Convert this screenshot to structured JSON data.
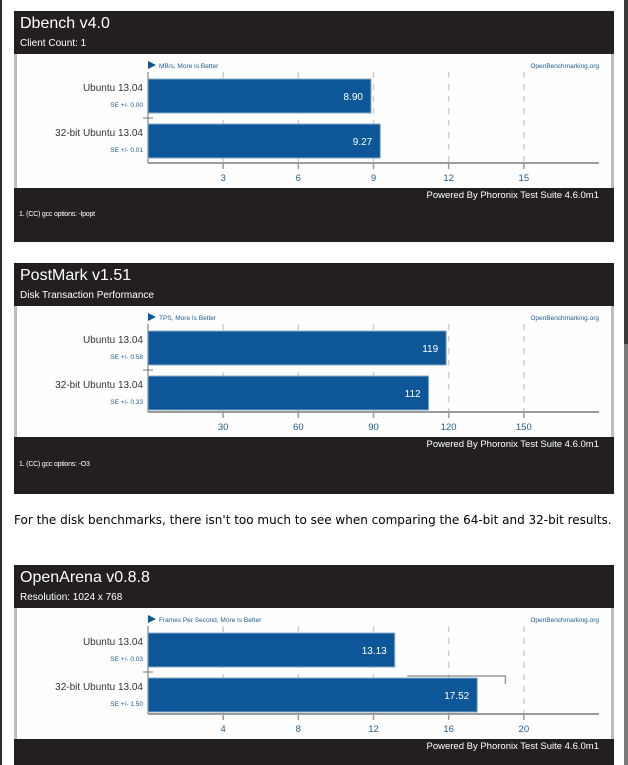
{
  "colors": {
    "bar": "#0d5697",
    "bar_border": "#8aa9c6",
    "header_bg": "#231f20",
    "axis": "#9b9b9b",
    "tick_label": "#1e5b91",
    "grid": "#cfcfcf"
  },
  "paragraph": "For the disk benchmarks, there isn't too much to see when comparing the 64-bit and 32-bit results.",
  "chart_data": [
    {
      "type": "bar",
      "orientation": "horizontal",
      "title": "Dbench v4.0",
      "subtitle": "Client Count: 1",
      "units_label": "MB/s, More Is Better",
      "watermark": "OpenBenchmarking.org",
      "categories": [
        "Ubuntu 13.04",
        "32-bit Ubuntu 13.04"
      ],
      "se_labels": [
        "SE +/- 0.00",
        "SE +/- 0.01"
      ],
      "values": [
        8.9,
        9.27
      ],
      "value_labels": [
        "8.90",
        "9.27"
      ],
      "error": [
        0.0,
        0.01
      ],
      "xticks": [
        3,
        6,
        9,
        12,
        15
      ],
      "xlim": [
        0,
        18
      ],
      "grid": true,
      "footnote": "1. (CC) gcc options: -lpopt",
      "powered_by": "Powered By Phoronix Test Suite 4.6.0m1"
    },
    {
      "type": "bar",
      "orientation": "horizontal",
      "title": "PostMark v1.51",
      "subtitle": "Disk Transaction Performance",
      "units_label": "TPS, More Is Better",
      "watermark": "OpenBenchmarking.org",
      "categories": [
        "Ubuntu 13.04",
        "32-bit Ubuntu 13.04"
      ],
      "se_labels": [
        "SE +/- 0.58",
        "SE +/- 0.33"
      ],
      "values": [
        119,
        112
      ],
      "value_labels": [
        "119",
        "112"
      ],
      "error": [
        0.58,
        0.33
      ],
      "xticks": [
        30,
        60,
        90,
        120,
        150
      ],
      "xlim": [
        0,
        180
      ],
      "grid": true,
      "footnote": "1. (CC) gcc options: -O3",
      "powered_by": "Powered By Phoronix Test Suite 4.6.0m1"
    },
    {
      "type": "bar",
      "orientation": "horizontal",
      "title": "OpenArena v0.8.8",
      "subtitle": "Resolution: 1024 x 768",
      "units_label": "Frames Per Second, More Is Better",
      "watermark": "OpenBenchmarking.org",
      "categories": [
        "Ubuntu 13.04",
        "32-bit Ubuntu 13.04"
      ],
      "se_labels": [
        "SE +/- 0.03",
        "SE +/- 1.50"
      ],
      "values": [
        13.13,
        17.52
      ],
      "value_labels": [
        "13.13",
        "17.52"
      ],
      "error": [
        0.03,
        1.5
      ],
      "xticks": [
        4,
        8,
        12,
        16,
        20
      ],
      "xlim": [
        0,
        24
      ],
      "grid": true,
      "footnote": "",
      "powered_by": "Powered By Phoronix Test Suite 4.6.0m1"
    }
  ]
}
